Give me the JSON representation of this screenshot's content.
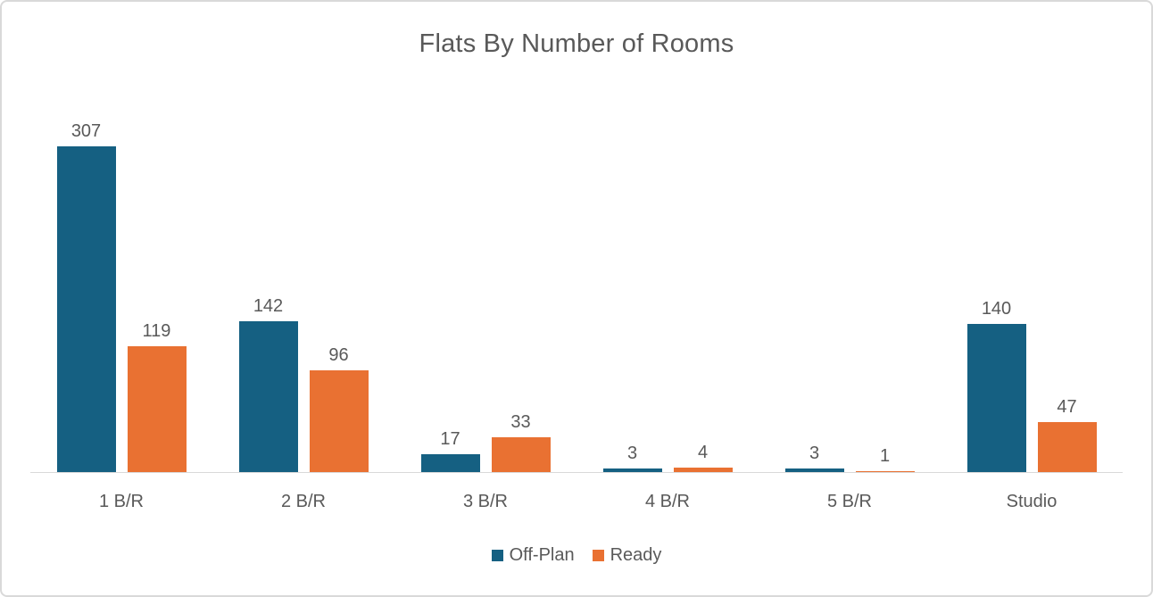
{
  "chart_data": {
    "type": "bar",
    "title": "Flats By Number of Rooms",
    "categories": [
      "1 B/R",
      "2 B/R",
      "3 B/R",
      "4 B/R",
      "5 B/R",
      "Studio"
    ],
    "series": [
      {
        "name": "Off-Plan",
        "color": "#156082",
        "values": [
          307,
          142,
          17,
          3,
          3,
          140
        ]
      },
      {
        "name": "Ready",
        "color": "#E97132",
        "values": [
          119,
          96,
          33,
          4,
          1,
          47
        ]
      }
    ],
    "xlabel": "",
    "ylabel": "",
    "ylim": [
      0,
      360
    ],
    "grid": false,
    "y_axis_visible": false,
    "data_labels": true,
    "legend_position": "bottom",
    "text_color": "#595959",
    "axis_line_color": "#D9D9D9",
    "background_color": "#FFFFFF"
  }
}
